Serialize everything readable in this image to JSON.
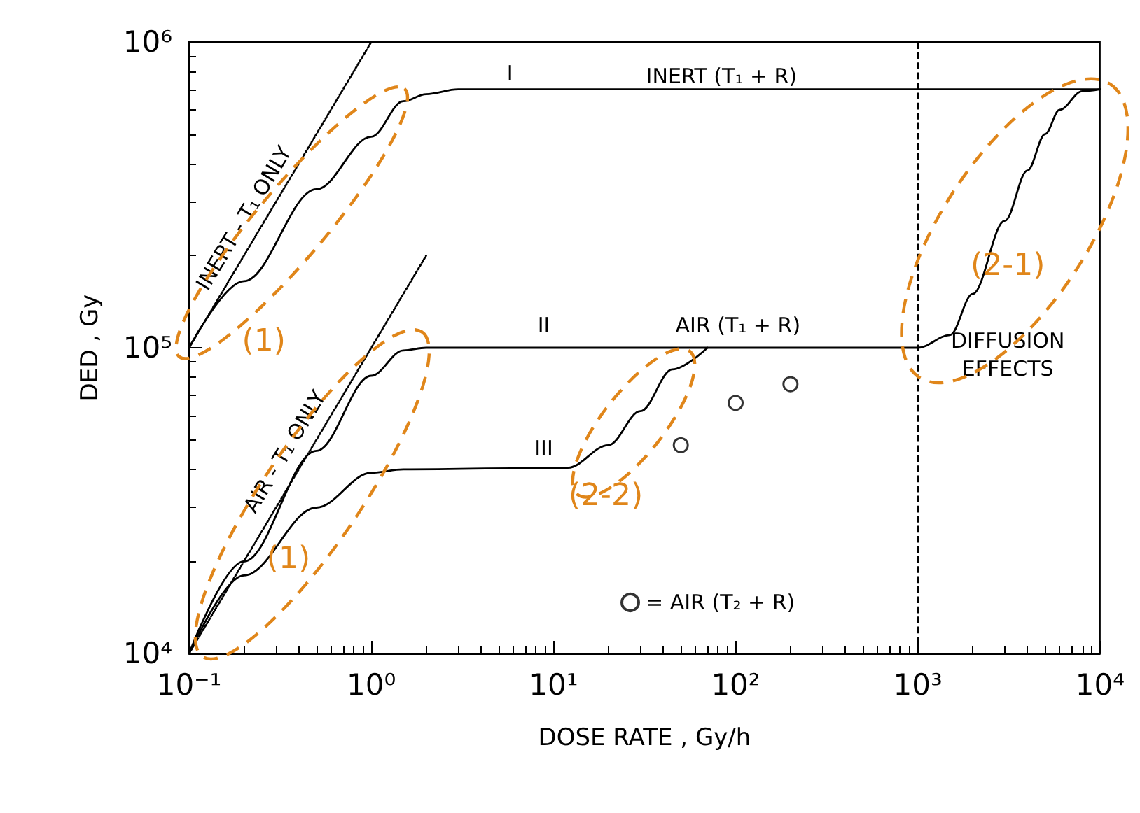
{
  "chart_data": {
    "type": "line",
    "xlabel": "DOSE RATE , Gy/h",
    "ylabel": "DED , Gy",
    "log": "xy",
    "grid": false,
    "marker": "none",
    "legend": "bottom",
    "xlim": [
      0.1,
      10000
    ],
    "ylim": [
      10000,
      1000000
    ],
    "xticks": [
      {
        "value": 0.1,
        "label": "10⁻¹"
      },
      {
        "value": 1,
        "label": "10⁰"
      },
      {
        "value": 10,
        "label": "10¹"
      },
      {
        "value": 100,
        "label": "10²"
      },
      {
        "value": 1000,
        "label": "10³"
      },
      {
        "value": 10000,
        "label": "10⁴"
      }
    ],
    "yticks": [
      {
        "value": 10000,
        "label": "10⁴"
      },
      {
        "value": 100000,
        "label": "10⁵"
      },
      {
        "value": 1000000,
        "label": "10⁶"
      }
    ],
    "series": [
      {
        "color": "#000000",
        "line_style": "solid",
        "x": [
          0.1,
          0.2,
          0.5,
          1,
          1.5,
          2,
          3,
          10,
          100,
          1000,
          10000
        ],
        "values": [
          100000,
          165000,
          330000,
          490000,
          640000,
          675000,
          700000,
          700000,
          700000,
          700000,
          700000
        ]
      },
      {
        "color": "#000000",
        "line_style": "solid",
        "x": [
          0.1,
          0.2,
          0.5,
          1,
          1.5,
          2,
          10,
          100,
          1000,
          1500,
          2000,
          3000,
          4000,
          5000,
          6000,
          8000,
          10000
        ],
        "values": [
          10000,
          20000,
          46000,
          81000,
          98000,
          100000,
          100000,
          100000,
          100000,
          110000,
          150000,
          260000,
          380000,
          500000,
          600000,
          690000,
          700000
        ]
      },
      {
        "color": "#000000",
        "line_style": "solid",
        "x": [
          0.1,
          0.2,
          0.5,
          1,
          1.5,
          12,
          20,
          30,
          45,
          70
        ],
        "values": [
          10000,
          18000,
          30000,
          39000,
          40000,
          40500,
          48000,
          62000,
          85000,
          100000
        ]
      },
      {
        "color": "#000000",
        "line_style": "dotted",
        "x": [
          0.1,
          1
        ],
        "values": [
          100000,
          1000000
        ]
      },
      {
        "color": "#000000",
        "line_style": "dotted",
        "x": [
          0.1,
          2
        ],
        "values": [
          10000,
          200000
        ]
      },
      {
        "type": "scatter",
        "name": "= AIR (T₂ + R)",
        "color": "#000000",
        "marker": "circle",
        "x": [
          50,
          100,
          200
        ],
        "values": [
          48000,
          66000,
          76000
        ]
      }
    ],
    "ref_lines": [
      {
        "axis": "x",
        "value": 1000,
        "color": "#000000",
        "line_style": "dashed"
      }
    ],
    "annotations": [
      "(1)",
      "(1)",
      "(2-2)",
      "(2-1)",
      "INERT - T₁ ONLY",
      "AIR - T₁ ONLY",
      "I",
      "INERT (T₁ + R)",
      "II",
      "AIR (T₁ + R)",
      "III",
      "DIFFUSION\nEFFECTS"
    ]
  }
}
